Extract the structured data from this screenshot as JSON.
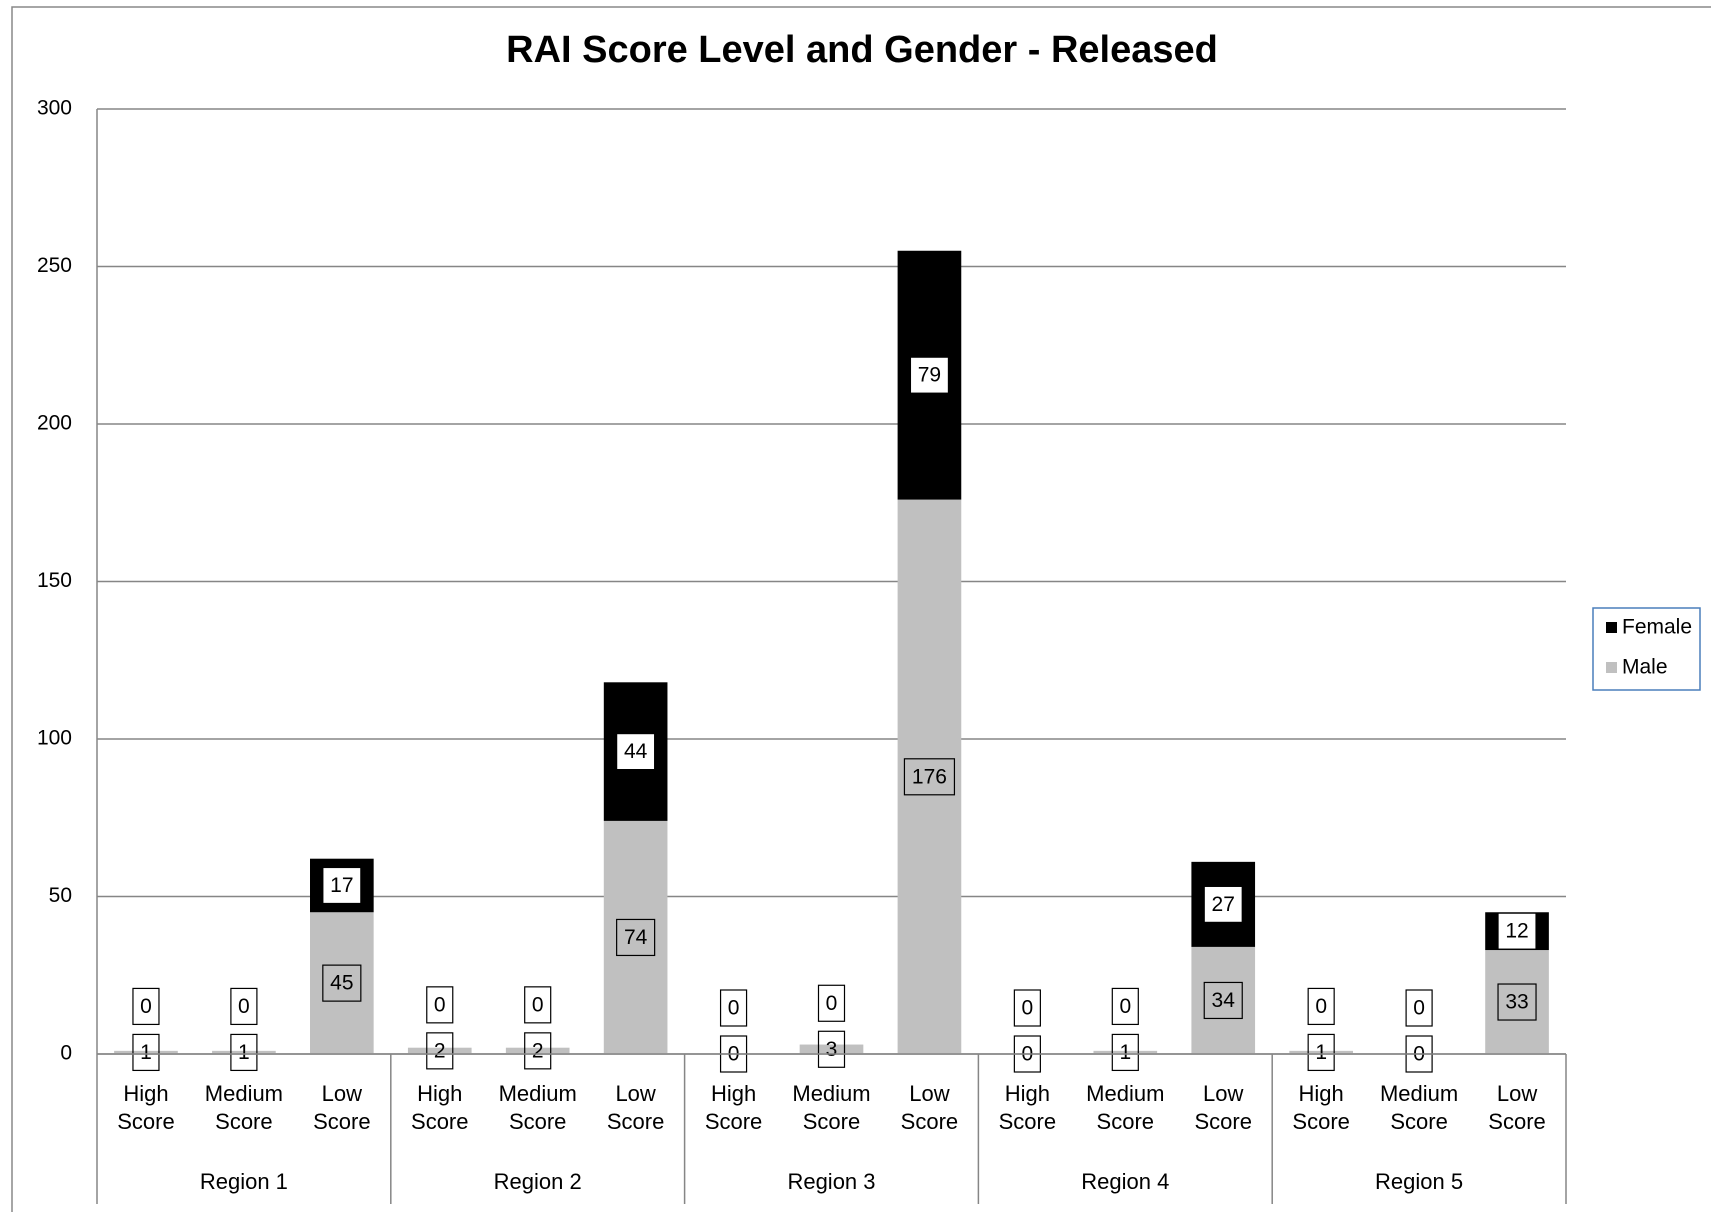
{
  "chart_data": {
    "type": "stacked_bar",
    "title": "RAI Score Level and Gender - Released",
    "categories": [
      "High Score",
      "Medium Score",
      "Low Score",
      "High Score",
      "Medium Score",
      "Low Score",
      "High Score",
      "Medium Score",
      "Low Score",
      "High Score",
      "Medium Score",
      "Low Score",
      "High Score",
      "Medium Score",
      "Low Score"
    ],
    "groups": [
      "Region 1",
      "Region 2",
      "Region 3",
      "Region 4",
      "Region 5"
    ],
    "series": [
      {
        "name": "Male",
        "color": "#c0c0c0",
        "values": [
          1,
          1,
          45,
          2,
          2,
          74,
          0,
          3,
          176,
          0,
          1,
          34,
          1,
          0,
          33
        ]
      },
      {
        "name": "Female",
        "color": "#000000",
        "values": [
          0,
          0,
          17,
          0,
          0,
          44,
          0,
          0,
          79,
          0,
          0,
          27,
          0,
          0,
          12
        ]
      }
    ],
    "ylim": [
      0,
      300
    ],
    "yticks": [
      0,
      50,
      100,
      150,
      200,
      250,
      300
    ],
    "grid": true,
    "legend": "right"
  }
}
